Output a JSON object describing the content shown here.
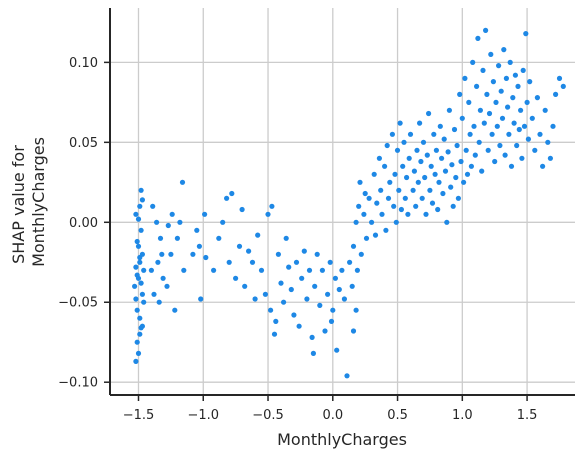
{
  "chart_data": {
    "type": "scatter",
    "title": "",
    "xlabel": "MonthlyCharges",
    "ylabel_lines": [
      "SHAP value for",
      "MonthlyCharges"
    ],
    "xlim": [
      -1.72,
      1.87
    ],
    "ylim": [
      -0.108,
      0.134
    ],
    "xticks": [
      -1.5,
      -1.0,
      -0.5,
      0.0,
      0.5,
      1.0,
      1.5
    ],
    "xtick_labels": [
      "−1.5",
      "−1.0",
      "−0.5",
      "0.0",
      "0.5",
      "1.0",
      "1.5"
    ],
    "yticks": [
      -0.1,
      -0.05,
      0.0,
      0.05,
      0.1
    ],
    "ytick_labels": [
      "−0.10",
      "−0.05",
      "0.00",
      "0.05",
      "0.10"
    ],
    "grid": true,
    "point_color": "#1e88e5",
    "series": [
      {
        "points": [
          [
            -1.52,
            -0.087
          ],
          [
            -1.51,
            -0.075
          ],
          [
            -1.5,
            -0.082
          ],
          [
            -1.49,
            -0.06
          ],
          [
            -1.48,
            -0.066
          ],
          [
            -1.47,
            -0.045
          ],
          [
            -1.53,
            -0.04
          ],
          [
            -1.5,
            -0.035
          ],
          [
            -1.46,
            -0.03
          ],
          [
            -1.52,
            -0.028
          ],
          [
            -1.49,
            -0.025
          ],
          [
            -1.47,
            -0.02
          ],
          [
            -1.51,
            -0.012
          ],
          [
            -1.48,
            -0.005
          ],
          [
            -1.5,
            0.002
          ],
          [
            -1.49,
            0.01
          ],
          [
            -1.52,
            0.005
          ],
          [
            -1.47,
            0.014
          ],
          [
            -1.48,
            0.02
          ],
          [
            -1.46,
            -0.05
          ],
          [
            -1.51,
            -0.055
          ],
          [
            -1.49,
            -0.07
          ],
          [
            -1.5,
            -0.015
          ],
          [
            -1.48,
            -0.038
          ],
          [
            -1.52,
            -0.048
          ],
          [
            -1.47,
            -0.065
          ],
          [
            -1.51,
            -0.033
          ],
          [
            -1.49,
            -0.022
          ],
          [
            -1.4,
            -0.03
          ],
          [
            -1.38,
            -0.045
          ],
          [
            -1.35,
            -0.025
          ],
          [
            -1.33,
            -0.01
          ],
          [
            -1.31,
            -0.035
          ],
          [
            -1.36,
            0.0
          ],
          [
            -1.32,
            -0.02
          ],
          [
            -1.39,
            0.01
          ],
          [
            -1.34,
            -0.05
          ],
          [
            -1.28,
            -0.04
          ],
          [
            -1.25,
            -0.02
          ],
          [
            -1.22,
            -0.055
          ],
          [
            -1.18,
            0.0
          ],
          [
            -1.16,
            0.025
          ],
          [
            -1.2,
            -0.01
          ],
          [
            -1.15,
            -0.03
          ],
          [
            -1.24,
            0.005
          ],
          [
            -1.27,
            -0.002
          ],
          [
            -1.08,
            -0.02
          ],
          [
            -1.05,
            -0.005
          ],
          [
            -1.02,
            -0.048
          ],
          [
            -0.99,
            0.005
          ],
          [
            -1.03,
            -0.015
          ],
          [
            -0.98,
            -0.022
          ],
          [
            -0.92,
            -0.03
          ],
          [
            -0.88,
            -0.01
          ],
          [
            -0.85,
            0.0
          ],
          [
            -0.82,
            0.015
          ],
          [
            -0.8,
            -0.025
          ],
          [
            -0.78,
            0.018
          ],
          [
            -0.75,
            -0.035
          ],
          [
            -0.72,
            -0.015
          ],
          [
            -0.7,
            0.008
          ],
          [
            -0.68,
            -0.04
          ],
          [
            -0.65,
            -0.018
          ],
          [
            -0.62,
            -0.025
          ],
          [
            -0.6,
            -0.048
          ],
          [
            -0.58,
            -0.008
          ],
          [
            -0.55,
            -0.03
          ],
          [
            -0.52,
            -0.045
          ],
          [
            -0.5,
            0.005
          ],
          [
            -0.48,
            -0.055
          ],
          [
            -0.47,
            0.01
          ],
          [
            -0.45,
            -0.07
          ],
          [
            -0.44,
            -0.062
          ],
          [
            -0.42,
            -0.02
          ],
          [
            -0.4,
            -0.038
          ],
          [
            -0.38,
            -0.05
          ],
          [
            -0.36,
            -0.01
          ],
          [
            -0.34,
            -0.028
          ],
          [
            -0.32,
            -0.042
          ],
          [
            -0.3,
            -0.058
          ],
          [
            -0.28,
            -0.025
          ],
          [
            -0.26,
            -0.065
          ],
          [
            -0.24,
            -0.035
          ],
          [
            -0.22,
            -0.018
          ],
          [
            -0.2,
            -0.048
          ],
          [
            -0.18,
            -0.03
          ],
          [
            -0.16,
            -0.072
          ],
          [
            -0.14,
            -0.04
          ],
          [
            -0.12,
            -0.02
          ],
          [
            -0.1,
            -0.052
          ],
          [
            -0.08,
            -0.03
          ],
          [
            -0.06,
            -0.068
          ],
          [
            -0.04,
            -0.045
          ],
          [
            -0.02,
            -0.025
          ],
          [
            0.0,
            -0.055
          ],
          [
            0.02,
            -0.035
          ],
          [
            0.03,
            -0.08
          ],
          [
            -0.01,
            -0.062
          ],
          [
            -0.15,
            -0.082
          ],
          [
            0.05,
            -0.042
          ],
          [
            0.07,
            -0.03
          ],
          [
            0.09,
            -0.048
          ],
          [
            0.11,
            -0.096
          ],
          [
            0.13,
            -0.025
          ],
          [
            0.15,
            -0.04
          ],
          [
            0.16,
            -0.068
          ],
          [
            0.18,
            -0.055
          ],
          [
            0.16,
            -0.015
          ],
          [
            0.18,
            0.0
          ],
          [
            0.2,
            0.01
          ],
          [
            0.19,
            -0.03
          ],
          [
            0.21,
            0.025
          ],
          [
            0.22,
            -0.02
          ],
          [
            0.24,
            0.005
          ],
          [
            0.25,
            0.018
          ],
          [
            0.26,
            -0.01
          ],
          [
            0.28,
            0.015
          ],
          [
            0.3,
            0.0
          ],
          [
            0.32,
            0.03
          ],
          [
            0.33,
            -0.008
          ],
          [
            0.34,
            0.012
          ],
          [
            0.36,
            0.04
          ],
          [
            0.37,
            0.02
          ],
          [
            0.38,
            0.005
          ],
          [
            0.4,
            0.035
          ],
          [
            0.41,
            -0.005
          ],
          [
            0.42,
            0.048
          ],
          [
            0.43,
            0.015
          ],
          [
            0.44,
            0.025
          ],
          [
            0.46,
            0.055
          ],
          [
            0.47,
            0.01
          ],
          [
            0.48,
            0.03
          ],
          [
            0.49,
            0.0
          ],
          [
            0.5,
            0.045
          ],
          [
            0.51,
            0.02
          ],
          [
            0.52,
            0.062
          ],
          [
            0.53,
            0.008
          ],
          [
            0.54,
            0.035
          ],
          [
            0.55,
            0.05
          ],
          [
            0.56,
            0.015
          ],
          [
            0.57,
            0.028
          ],
          [
            0.58,
            0.005
          ],
          [
            0.59,
            0.04
          ],
          [
            0.6,
            0.055
          ],
          [
            0.62,
            0.02
          ],
          [
            0.63,
            0.032
          ],
          [
            0.64,
            0.01
          ],
          [
            0.65,
            0.045
          ],
          [
            0.66,
            0.025
          ],
          [
            0.67,
            0.062
          ],
          [
            0.68,
            0.038
          ],
          [
            0.69,
            0.015
          ],
          [
            0.7,
            0.05
          ],
          [
            0.71,
            0.028
          ],
          [
            0.72,
            0.005
          ],
          [
            0.73,
            0.042
          ],
          [
            0.74,
            0.068
          ],
          [
            0.75,
            0.02
          ],
          [
            0.76,
            0.035
          ],
          [
            0.77,
            0.012
          ],
          [
            0.78,
            0.055
          ],
          [
            0.79,
            0.03
          ],
          [
            0.8,
            0.045
          ],
          [
            0.81,
            0.008
          ],
          [
            0.82,
            0.025
          ],
          [
            0.83,
            0.06
          ],
          [
            0.84,
            0.04
          ],
          [
            0.85,
            0.018
          ],
          [
            0.86,
            0.052
          ],
          [
            0.87,
            0.032
          ],
          [
            0.88,
            0.0
          ],
          [
            0.89,
            0.044
          ],
          [
            0.9,
            0.07
          ],
          [
            0.91,
            0.022
          ],
          [
            0.92,
            0.036
          ],
          [
            0.93,
            0.01
          ],
          [
            0.94,
            0.058
          ],
          [
            0.95,
            0.028
          ],
          [
            0.96,
            0.048
          ],
          [
            0.97,
            0.015
          ],
          [
            0.98,
            0.08
          ],
          [
            0.99,
            0.038
          ],
          [
            1.0,
            0.065
          ],
          [
            1.01,
            0.025
          ],
          [
            1.02,
            0.09
          ],
          [
            1.03,
            0.045
          ],
          [
            1.04,
            0.03
          ],
          [
            1.05,
            0.075
          ],
          [
            1.06,
            0.055
          ],
          [
            1.07,
            0.035
          ],
          [
            1.08,
            0.1
          ],
          [
            1.09,
            0.06
          ],
          [
            1.1,
            0.042
          ],
          [
            1.11,
            0.085
          ],
          [
            1.12,
            0.115
          ],
          [
            1.13,
            0.05
          ],
          [
            1.14,
            0.07
          ],
          [
            1.15,
            0.032
          ],
          [
            1.16,
            0.095
          ],
          [
            1.17,
            0.062
          ],
          [
            1.18,
            0.12
          ],
          [
            1.19,
            0.08
          ],
          [
            1.2,
            0.045
          ],
          [
            1.21,
            0.068
          ],
          [
            1.22,
            0.105
          ],
          [
            1.23,
            0.055
          ],
          [
            1.24,
            0.088
          ],
          [
            1.25,
            0.038
          ],
          [
            1.26,
            0.075
          ],
          [
            1.27,
            0.06
          ],
          [
            1.28,
            0.098
          ],
          [
            1.29,
            0.048
          ],
          [
            1.3,
            0.082
          ],
          [
            1.31,
            0.065
          ],
          [
            1.32,
            0.108
          ],
          [
            1.33,
            0.042
          ],
          [
            1.34,
            0.09
          ],
          [
            1.35,
            0.072
          ],
          [
            1.36,
            0.055
          ],
          [
            1.37,
            0.1
          ],
          [
            1.38,
            0.035
          ],
          [
            1.39,
            0.078
          ],
          [
            1.4,
            0.062
          ],
          [
            1.41,
            0.092
          ],
          [
            1.42,
            0.048
          ],
          [
            1.43,
            0.085
          ],
          [
            1.44,
            0.058
          ],
          [
            1.45,
            0.07
          ],
          [
            1.46,
            0.04
          ],
          [
            1.47,
            0.095
          ],
          [
            1.48,
            0.06
          ],
          [
            1.49,
            0.118
          ],
          [
            1.5,
            0.075
          ],
          [
            1.51,
            0.052
          ],
          [
            1.52,
            0.088
          ],
          [
            1.54,
            0.065
          ],
          [
            1.56,
            0.045
          ],
          [
            1.58,
            0.078
          ],
          [
            1.6,
            0.055
          ],
          [
            1.62,
            0.035
          ],
          [
            1.64,
            0.07
          ],
          [
            1.66,
            0.05
          ],
          [
            1.68,
            0.04
          ],
          [
            1.7,
            0.06
          ],
          [
            1.72,
            0.08
          ],
          [
            1.75,
            0.09
          ],
          [
            1.78,
            0.085
          ]
        ]
      }
    ]
  }
}
